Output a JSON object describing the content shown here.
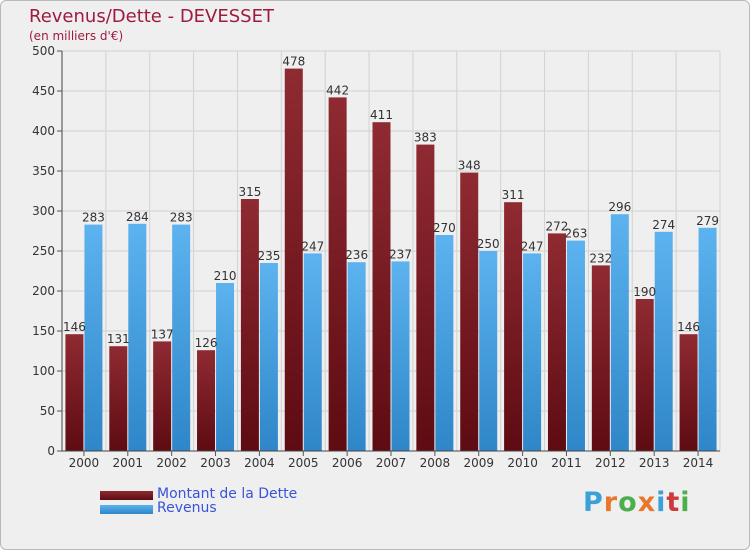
{
  "header": {
    "title": "Revenus/Dette - DEVESSET",
    "subtitle": "(en milliers d'€)"
  },
  "legend": {
    "items": [
      {
        "label": "Montant de la Dette",
        "color": "#7a1520"
      },
      {
        "label": "Revenus",
        "color": "#4aa3e6"
      }
    ]
  },
  "logo": {
    "text": "Proxiti",
    "colors": [
      "#3aa0d8",
      "#e8762b",
      "#4cae4c",
      "#e8762b",
      "#3aa0d8",
      "#cc3b3b",
      "#4cae4c"
    ]
  },
  "chart_data": {
    "type": "bar",
    "categories": [
      "2000",
      "2001",
      "2002",
      "2003",
      "2004",
      "2005",
      "2006",
      "2007",
      "2008",
      "2009",
      "2010",
      "2011",
      "2012",
      "2013",
      "2014"
    ],
    "series": [
      {
        "name": "Montant de la Dette",
        "color": "#7a1520",
        "values": [
          146,
          131,
          137,
          126,
          315,
          478,
          442,
          411,
          383,
          348,
          311,
          272,
          232,
          190,
          146
        ]
      },
      {
        "name": "Revenus",
        "color": "#4aa3e6",
        "values": [
          283,
          284,
          283,
          210,
          235,
          247,
          236,
          237,
          270,
          250,
          247,
          263,
          296,
          274,
          279
        ]
      }
    ],
    "ylim": [
      0,
      500
    ],
    "yticks": [
      0,
      50,
      100,
      150,
      200,
      250,
      300,
      350,
      400,
      450,
      500
    ],
    "grid": true,
    "xlabel": "",
    "ylabel": ""
  }
}
